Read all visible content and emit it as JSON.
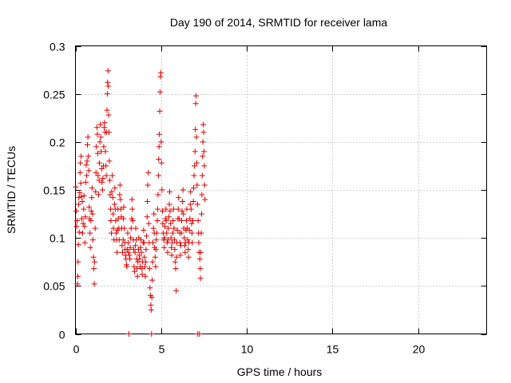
{
  "chart_data": {
    "type": "scatter",
    "title": "Day 190 of 2014, SRMTID for receiver lama",
    "xlabel": "GPS time / hours",
    "ylabel": "SRMTID / TECUs",
    "xlim": [
      0,
      24
    ],
    "ylim": [
      0,
      0.3
    ],
    "x_ticks": [
      0,
      5,
      10,
      15,
      20
    ],
    "x_tick_labels": [
      "0",
      "5",
      "10",
      "15",
      "20"
    ],
    "y_ticks": [
      0,
      0.05,
      0.1,
      0.15,
      0.2,
      0.25,
      0.3
    ],
    "y_tick_labels": [
      "0",
      "0.05",
      "0.1",
      "0.15",
      "0.2",
      "0.25",
      "0.3"
    ],
    "grid": true,
    "marker": "plus",
    "series": [
      {
        "name": "SRMTID",
        "color": "#e00000",
        "points": [
          [
            0.02,
            0.153
          ],
          [
            0.05,
            0.128
          ],
          [
            0.07,
            0.112
          ],
          [
            0.1,
            0.118
          ],
          [
            0.12,
            0.052
          ],
          [
            0.14,
            0.06
          ],
          [
            0.15,
            0.075
          ],
          [
            0.17,
            0.093
          ],
          [
            0.19,
            0.135
          ],
          [
            0.2,
            0.142
          ],
          [
            0.22,
            0.106
          ],
          [
            0.25,
            0.147
          ],
          [
            0.27,
            0.168
          ],
          [
            0.29,
            0.178
          ],
          [
            0.31,
            0.157
          ],
          [
            0.33,
            0.185
          ],
          [
            0.35,
            0.143
          ],
          [
            0.37,
            0.12
          ],
          [
            0.4,
            0.138
          ],
          [
            0.42,
            0.105
          ],
          [
            0.45,
            0.115
          ],
          [
            0.48,
            0.13
          ],
          [
            0.5,
            0.144
          ],
          [
            0.53,
            0.112
          ],
          [
            0.55,
            0.095
          ],
          [
            0.58,
            0.122
          ],
          [
            0.6,
            0.158
          ],
          [
            0.63,
            0.176
          ],
          [
            0.66,
            0.165
          ],
          [
            0.68,
            0.18
          ],
          [
            0.7,
            0.197
          ],
          [
            0.73,
            0.205
          ],
          [
            0.75,
            0.185
          ],
          [
            0.78,
            0.17
          ],
          [
            0.8,
            0.132
          ],
          [
            0.82,
            0.12
          ],
          [
            0.85,
            0.105
          ],
          [
            0.87,
            0.09
          ],
          [
            0.9,
            0.118
          ],
          [
            0.92,
            0.128
          ],
          [
            0.95,
            0.142
          ],
          [
            0.97,
            0.152
          ],
          [
            1.0,
            0.125
          ],
          [
            1.02,
            0.098
          ],
          [
            1.05,
            0.08
          ],
          [
            1.07,
            0.068
          ],
          [
            1.1,
            0.052
          ],
          [
            1.12,
            0.075
          ],
          [
            1.15,
            0.11
          ],
          [
            1.18,
            0.148
          ],
          [
            1.2,
            0.168
          ],
          [
            1.22,
            0.195
          ],
          [
            1.25,
            0.215
          ],
          [
            1.28,
            0.208
          ],
          [
            1.3,
            0.188
          ],
          [
            1.32,
            0.165
          ],
          [
            1.35,
            0.145
          ],
          [
            1.38,
            0.16
          ],
          [
            1.4,
            0.178
          ],
          [
            1.43,
            0.2
          ],
          [
            1.45,
            0.218
          ],
          [
            1.48,
            0.205
          ],
          [
            1.5,
            0.19
          ],
          [
            1.53,
            0.172
          ],
          [
            1.55,
            0.158
          ],
          [
            1.58,
            0.15
          ],
          [
            1.6,
            0.162
          ],
          [
            1.63,
            0.175
          ],
          [
            1.65,
            0.195
          ],
          [
            1.68,
            0.215
          ],
          [
            1.7,
            0.22
          ],
          [
            1.73,
            0.21
          ],
          [
            1.75,
            0.19
          ],
          [
            1.78,
            0.175
          ],
          [
            1.8,
            0.165
          ],
          [
            1.82,
            0.21
          ],
          [
            1.84,
            0.233
          ],
          [
            1.86,
            0.25
          ],
          [
            1.88,
            0.262
          ],
          [
            1.9,
            0.274
          ],
          [
            1.92,
            0.258
          ],
          [
            1.94,
            0.228
          ],
          [
            1.96,
            0.21
          ],
          [
            1.98,
            0.18
          ],
          [
            2.0,
            0.16
          ],
          [
            2.02,
            0.145
          ],
          [
            2.05,
            0.13
          ],
          [
            2.07,
            0.118
          ],
          [
            2.1,
            0.105
          ],
          [
            2.12,
            0.148
          ],
          [
            2.15,
            0.165
          ],
          [
            2.18,
            0.142
          ],
          [
            2.2,
            0.125
          ],
          [
            2.22,
            0.11
          ],
          [
            2.25,
            0.098
          ],
          [
            2.28,
            0.135
          ],
          [
            2.3,
            0.152
          ],
          [
            2.32,
            0.13
          ],
          [
            2.35,
            0.118
          ],
          [
            2.38,
            0.105
          ],
          [
            2.4,
            0.098
          ],
          [
            2.43,
            0.085
          ],
          [
            2.45,
            0.108
          ],
          [
            2.48,
            0.13
          ],
          [
            2.5,
            0.12
          ],
          [
            2.53,
            0.11
          ],
          [
            2.55,
            0.098
          ],
          [
            2.58,
            0.145
          ],
          [
            2.6,
            0.155
          ],
          [
            2.62,
            0.14
          ],
          [
            2.65,
            0.13
          ],
          [
            2.68,
            0.122
          ],
          [
            2.7,
            0.11
          ],
          [
            2.72,
            0.092
          ],
          [
            2.75,
            0.085
          ],
          [
            2.78,
            0.098
          ],
          [
            2.8,
            0.12
          ],
          [
            2.82,
            0.132
          ],
          [
            2.85,
            0.11
          ],
          [
            2.88,
            0.095
          ],
          [
            2.9,
            0.088
          ],
          [
            2.92,
            0.082
          ],
          [
            2.95,
            0.078
          ],
          [
            2.98,
            0.072
          ],
          [
            3.0,
            0.07
          ],
          [
            3.02,
            0.088
          ],
          [
            3.05,
            0.105
          ],
          [
            3.08,
            0.095
          ],
          [
            3.1,
            0.085
          ],
          [
            3.12,
            0.0
          ],
          [
            3.15,
            0.082
          ],
          [
            3.18,
            0.078
          ],
          [
            3.2,
            0.09
          ],
          [
            3.22,
            0.1
          ],
          [
            3.25,
            0.11
          ],
          [
            3.28,
            0.12
          ],
          [
            3.3,
            0.14
          ],
          [
            3.32,
            0.13
          ],
          [
            3.35,
            0.118
          ],
          [
            3.38,
            0.098
          ],
          [
            3.4,
            0.088
          ],
          [
            3.42,
            0.07
          ],
          [
            3.45,
            0.065
          ],
          [
            3.48,
            0.085
          ],
          [
            3.5,
            0.092
          ],
          [
            3.52,
            0.11
          ],
          [
            3.55,
            0.098
          ],
          [
            3.58,
            0.078
          ],
          [
            3.6,
            0.068
          ],
          [
            3.62,
            0.06
          ],
          [
            3.65,
            0.075
          ],
          [
            3.68,
            0.088
          ],
          [
            3.7,
            0.1
          ],
          [
            3.72,
            0.082
          ],
          [
            3.75,
            0.078
          ],
          [
            3.78,
            0.07
          ],
          [
            3.8,
            0.09
          ],
          [
            3.82,
            0.098
          ],
          [
            3.85,
            0.085
          ],
          [
            3.88,
            0.068
          ],
          [
            3.9,
            0.062
          ],
          [
            3.92,
            0.075
          ],
          [
            3.95,
            0.095
          ],
          [
            3.98,
            0.108
          ],
          [
            4.0,
            0.095
          ],
          [
            4.02,
            0.08
          ],
          [
            4.05,
            0.07
          ],
          [
            4.08,
            0.06
          ],
          [
            4.1,
            0.075
          ],
          [
            4.12,
            0.088
          ],
          [
            4.15,
            0.102
          ],
          [
            4.18,
            0.122
          ],
          [
            4.2,
            0.138
          ],
          [
            4.22,
            0.155
          ],
          [
            4.25,
            0.168
          ],
          [
            4.28,
            0.115
          ],
          [
            4.3,
            0.095
          ],
          [
            4.32,
            0.068
          ],
          [
            4.35,
            0.048
          ],
          [
            4.38,
            0.04
          ],
          [
            4.4,
            0.03
          ],
          [
            4.42,
            0.025
          ],
          [
            4.44,
            0.0
          ],
          [
            4.46,
            0.038
          ],
          [
            4.48,
            0.056
          ],
          [
            4.5,
            0.075
          ],
          [
            4.52,
            0.095
          ],
          [
            4.55,
            0.11
          ],
          [
            4.58,
            0.125
          ],
          [
            4.6,
            0.105
          ],
          [
            4.62,
            0.09
          ],
          [
            4.65,
            0.08
          ],
          [
            4.68,
            0.07
          ],
          [
            4.7,
            0.088
          ],
          [
            4.72,
            0.098
          ],
          [
            4.75,
            0.105
          ],
          [
            4.78,
            0.118
          ],
          [
            4.8,
            0.13
          ],
          [
            4.82,
            0.145
          ],
          [
            4.84,
            0.165
          ],
          [
            4.86,
            0.182
          ],
          [
            4.88,
            0.195
          ],
          [
            4.9,
            0.208
          ],
          [
            4.92,
            0.232
          ],
          [
            4.94,
            0.252
          ],
          [
            4.96,
            0.268
          ],
          [
            4.98,
            0.272
          ],
          [
            5.0,
            0.2
          ],
          [
            5.02,
            0.178
          ],
          [
            5.05,
            0.15
          ],
          [
            5.08,
            0.128
          ],
          [
            5.1,
            0.115
          ],
          [
            5.12,
            0.105
          ],
          [
            5.15,
            0.098
          ],
          [
            5.18,
            0.09
          ],
          [
            5.2,
            0.1
          ],
          [
            5.22,
            0.112
          ],
          [
            5.25,
            0.12
          ],
          [
            5.28,
            0.13
          ],
          [
            5.3,
            0.118
          ],
          [
            5.32,
            0.105
          ],
          [
            5.35,
            0.095
          ],
          [
            5.38,
            0.085
          ],
          [
            5.4,
            0.098
          ],
          [
            5.42,
            0.11
          ],
          [
            5.45,
            0.122
          ],
          [
            5.48,
            0.135
          ],
          [
            5.5,
            0.148
          ],
          [
            5.52,
            0.128
          ],
          [
            5.55,
            0.115
          ],
          [
            5.58,
            0.1
          ],
          [
            5.6,
            0.09
          ],
          [
            5.62,
            0.082
          ],
          [
            5.65,
            0.095
          ],
          [
            5.68,
            0.105
          ],
          [
            5.7,
            0.118
          ],
          [
            5.72,
            0.13
          ],
          [
            5.75,
            0.11
          ],
          [
            5.78,
            0.098
          ],
          [
            5.8,
            0.088
          ],
          [
            5.82,
            0.075
          ],
          [
            5.85,
            0.068
          ],
          [
            5.88,
            0.045
          ],
          [
            5.9,
            0.08
          ],
          [
            5.92,
            0.095
          ],
          [
            5.95,
            0.108
          ],
          [
            5.98,
            0.12
          ],
          [
            6.0,
            0.13
          ],
          [
            6.02,
            0.142
          ],
          [
            6.05,
            0.12
          ],
          [
            6.08,
            0.105
          ],
          [
            6.1,
            0.095
          ],
          [
            6.12,
            0.082
          ],
          [
            6.15,
            0.092
          ],
          [
            6.18,
            0.105
          ],
          [
            6.2,
            0.118
          ],
          [
            6.22,
            0.128
          ],
          [
            6.25,
            0.138
          ],
          [
            6.28,
            0.15
          ],
          [
            6.3,
            0.125
          ],
          [
            6.32,
            0.11
          ],
          [
            6.35,
            0.1
          ],
          [
            6.38,
            0.092
          ],
          [
            6.4,
            0.085
          ],
          [
            6.42,
            0.095
          ],
          [
            6.45,
            0.108
          ],
          [
            6.48,
            0.118
          ],
          [
            6.5,
            0.13
          ],
          [
            6.52,
            0.11
          ],
          [
            6.55,
            0.098
          ],
          [
            6.58,
            0.088
          ],
          [
            6.6,
            0.08
          ],
          [
            6.62,
            0.095
          ],
          [
            6.65,
            0.108
          ],
          [
            6.68,
            0.12
          ],
          [
            6.7,
            0.135
          ],
          [
            6.72,
            0.148
          ],
          [
            6.75,
            0.13
          ],
          [
            6.78,
            0.115
          ],
          [
            6.8,
            0.105
          ],
          [
            6.82,
            0.095
          ],
          [
            6.85,
            0.118
          ],
          [
            6.88,
            0.138
          ],
          [
            6.9,
            0.152
          ],
          [
            6.92,
            0.165
          ],
          [
            6.95,
            0.175
          ],
          [
            6.98,
            0.19
          ],
          [
            7.0,
            0.213
          ],
          [
            7.02,
            0.24
          ],
          [
            7.04,
            0.248
          ],
          [
            7.06,
            0.205
          ],
          [
            7.08,
            0.178
          ],
          [
            7.1,
            0.155
          ],
          [
            7.12,
            0.135
          ],
          [
            7.14,
            0.0
          ],
          [
            7.16,
            0.118
          ],
          [
            7.18,
            0.105
          ],
          [
            7.2,
            0.095
          ],
          [
            7.22,
            0.085
          ],
          [
            7.24,
            0.0
          ],
          [
            7.26,
            0.078
          ],
          [
            7.28,
            0.068
          ],
          [
            7.3,
            0.058
          ],
          [
            7.32,
            0.085
          ],
          [
            7.34,
            0.105
          ],
          [
            7.36,
            0.125
          ],
          [
            7.38,
            0.145
          ],
          [
            7.4,
            0.165
          ],
          [
            7.42,
            0.185
          ],
          [
            7.44,
            0.2
          ],
          [
            7.46,
            0.218
          ],
          [
            7.48,
            0.21
          ],
          [
            7.5,
            0.19
          ],
          [
            7.52,
            0.175
          ],
          [
            7.54,
            0.155
          ],
          [
            7.56,
            0.14
          ]
        ]
      }
    ]
  }
}
